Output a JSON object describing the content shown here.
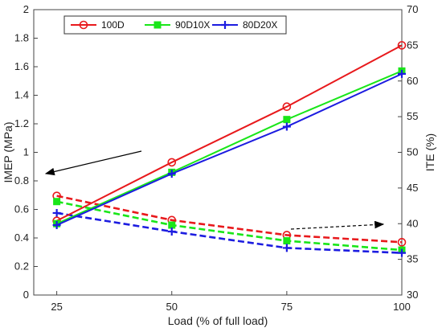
{
  "chart_data": {
    "type": "line",
    "x": [
      25,
      50,
      75,
      100
    ],
    "xlabel": "Load (% of full load)",
    "ylabel_left": "IMEP (MPa)",
    "ylabel_right": "ITE (%)",
    "xlim": [
      20,
      100
    ],
    "ylim_left": [
      0,
      2
    ],
    "ylim_right": [
      30,
      70
    ],
    "xticks": [
      "25",
      "50",
      "75",
      "100"
    ],
    "yticks_left": [
      "0",
      "0.2",
      "0.4",
      "0.6",
      "0.8",
      "1",
      "1.2",
      "1.4",
      "1.6",
      "1.8",
      "2"
    ],
    "yticks_right": [
      "30",
      "35",
      "40",
      "45",
      "50",
      "55",
      "60",
      "65",
      "70"
    ],
    "legend_position": "top-left",
    "colors": {
      "100D": "#e8191c",
      "90D10X": "#19e619",
      "80D20X": "#1c1ce0"
    },
    "imep_series": [
      {
        "name": "100D",
        "marker": "circle",
        "values": [
          0.52,
          0.93,
          1.32,
          1.75
        ]
      },
      {
        "name": "90D10X",
        "marker": "square",
        "values": [
          0.5,
          0.86,
          1.23,
          1.57
        ]
      },
      {
        "name": "80D20X",
        "marker": "plus",
        "values": [
          0.49,
          0.85,
          1.18,
          1.55
        ]
      }
    ],
    "ite_series": [
      {
        "name": "100D",
        "marker": "circle",
        "values": [
          43.9,
          40.5,
          38.4,
          37.4
        ]
      },
      {
        "name": "90D10X",
        "marker": "square",
        "values": [
          43.1,
          39.8,
          37.6,
          36.3
        ]
      },
      {
        "name": "80D20X",
        "marker": "plus",
        "values": [
          41.5,
          38.9,
          36.6,
          35.9
        ]
      }
    ],
    "annotations": {
      "imep_arrow": "points left to IMEP axis",
      "ite_arrow": "dashed, points right to ITE axis"
    }
  }
}
